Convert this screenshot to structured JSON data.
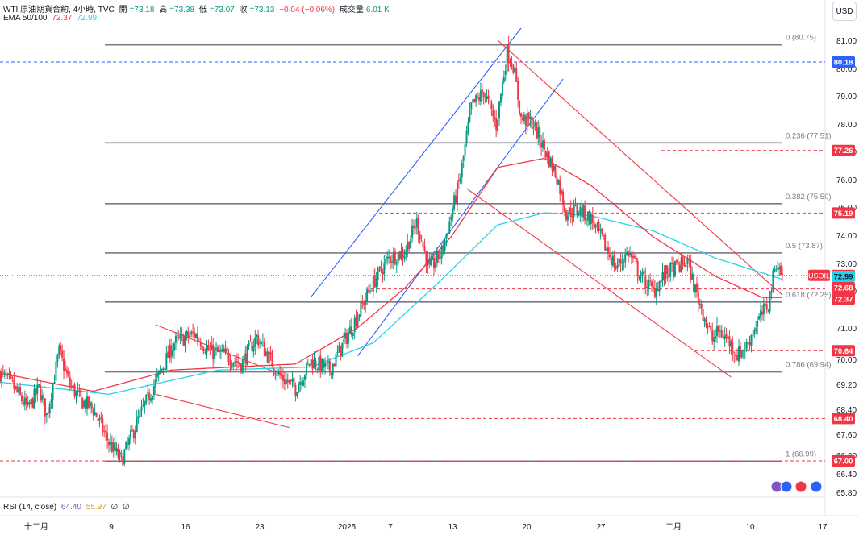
{
  "header": {
    "symbol_line": "WTI 原油期貨合約, 4小時, TVC",
    "open_label": "開",
    "open": "=73.18",
    "high_label": "高",
    "high": "=73.38",
    "low_label": "低",
    "low": "=73.07",
    "close_label": "收",
    "close": "=73.13",
    "change": "−0.04 (−0.06%)",
    "volume_label": "成交量",
    "volume": "6.01 K",
    "ema_label": "EMA 50/100",
    "ema50": "72.37",
    "ema100": "72.99",
    "currency_button": "USD"
  },
  "colors": {
    "up": "#089981",
    "down": "#f23645",
    "ema50": "#f23645",
    "ema100": "#22d3ee",
    "trend_blue": "#2962ff",
    "trend_red": "#f23645",
    "fib": "#787b86",
    "last": "#f23645"
  },
  "rsi": {
    "label": "RSI (14, close)",
    "value1": "64.40",
    "value2": "55.97",
    "zero1": "∅",
    "zero2": "∅"
  },
  "chart_data": {
    "type": "candlestick",
    "title": "WTI 原油期貨合約, 4小時, TVC",
    "y_ticks": [
      "81.00",
      "80.00",
      "79.00",
      "78.00",
      "77.00",
      "76.00",
      "75.00",
      "74.00",
      "73.00",
      "72.00",
      "71.00",
      "70.00",
      "69.20",
      "68.40",
      "67.60",
      "66.80",
      "66.40",
      "65.80"
    ],
    "ylim": [
      65.8,
      81.3
    ],
    "x_ticks": [
      "十二月",
      "9",
      "16",
      "23",
      "2025",
      "7",
      "13",
      "20",
      "27",
      "二月",
      "10",
      "17"
    ],
    "fibonacci": [
      {
        "label": "0 (80.75)",
        "value": 80.75
      },
      {
        "label": "0.236 (77.51)",
        "value": 77.51
      },
      {
        "label": "0.382 (75.50)",
        "value": 75.5
      },
      {
        "label": "0.5 (73.87)",
        "value": 73.87
      },
      {
        "label": "0.618 (72.25)",
        "value": 72.25
      },
      {
        "label": "0.786 (69.94)",
        "value": 69.94
      },
      {
        "label": "1 (66.99)",
        "value": 66.99
      }
    ],
    "price_labels": [
      {
        "text": "80.18",
        "value": 80.18,
        "style": "blue"
      },
      {
        "text": "77.26",
        "value": 77.26,
        "style": "red"
      },
      {
        "text": "75.19",
        "value": 75.19,
        "style": "red"
      },
      {
        "text": "USOIL",
        "value": 73.13,
        "style": "symbol"
      },
      {
        "text": "73.13",
        "value": 73.13,
        "style": "red"
      },
      {
        "text": "72.99",
        "value": 72.99,
        "style": "cyan"
      },
      {
        "text": "72.68",
        "value": 72.68,
        "style": "red"
      },
      {
        "text": "72.37",
        "value": 72.37,
        "style": "red"
      },
      {
        "text": "70.64",
        "value": 70.64,
        "style": "red"
      },
      {
        "text": "68.40",
        "value": 68.4,
        "style": "red"
      },
      {
        "text": "67.00",
        "value": 67.0,
        "style": "red"
      }
    ],
    "anchors": [
      [
        0,
        69.9
      ],
      [
        8,
        69.5
      ],
      [
        18,
        68.7
      ],
      [
        25,
        69.4
      ],
      [
        30,
        68.5
      ],
      [
        38,
        70.6
      ],
      [
        45,
        69.5
      ],
      [
        52,
        69.0
      ],
      [
        60,
        68.7
      ],
      [
        70,
        67.6
      ],
      [
        78,
        67.0
      ],
      [
        90,
        68.5
      ],
      [
        100,
        69.6
      ],
      [
        112,
        70.9
      ],
      [
        125,
        71.2
      ],
      [
        135,
        70.6
      ],
      [
        145,
        70.5
      ],
      [
        155,
        70.2
      ],
      [
        165,
        71.1
      ],
      [
        180,
        69.8
      ],
      [
        190,
        69.4
      ],
      [
        200,
        70.3
      ],
      [
        212,
        70.0
      ],
      [
        225,
        71.3
      ],
      [
        240,
        72.9
      ],
      [
        250,
        73.7
      ],
      [
        260,
        73.9
      ],
      [
        268,
        74.9
      ],
      [
        276,
        73.3
      ],
      [
        284,
        73.9
      ],
      [
        291,
        75.3
      ],
      [
        296,
        76.4
      ],
      [
        303,
        78.7
      ],
      [
        311,
        79.2
      ],
      [
        319,
        78.1
      ],
      [
        326,
        80.5
      ],
      [
        330,
        80.1
      ],
      [
        335,
        78.3
      ],
      [
        342,
        78.2
      ],
      [
        350,
        77.3
      ],
      [
        358,
        76.4
      ],
      [
        364,
        75.2
      ],
      [
        372,
        75.3
      ],
      [
        380,
        75.0
      ],
      [
        388,
        74.2
      ],
      [
        396,
        73.4
      ],
      [
        404,
        73.9
      ],
      [
        412,
        73.1
      ],
      [
        420,
        72.6
      ],
      [
        428,
        73.2
      ],
      [
        436,
        73.4
      ],
      [
        442,
        73.6
      ],
      [
        446,
        72.8
      ],
      [
        452,
        71.9
      ],
      [
        458,
        71.0
      ],
      [
        462,
        71.3
      ],
      [
        468,
        71.0
      ],
      [
        474,
        70.5
      ],
      [
        480,
        70.8
      ],
      [
        486,
        71.5
      ],
      [
        494,
        72.2
      ],
      [
        499,
        73.6
      ],
      [
        503,
        73.1
      ]
    ],
    "ema50": [
      [
        0,
        69.9
      ],
      [
        60,
        69.3
      ],
      [
        110,
        70.0
      ],
      [
        190,
        70.2
      ],
      [
        230,
        71.4
      ],
      [
        260,
        72.7
      ],
      [
        290,
        74.4
      ],
      [
        320,
        76.7
      ],
      [
        350,
        77.0
      ],
      [
        380,
        76.1
      ],
      [
        420,
        74.4
      ],
      [
        460,
        73.1
      ],
      [
        490,
        72.4
      ],
      [
        503,
        72.4
      ]
    ],
    "ema100": [
      [
        0,
        69.6
      ],
      [
        70,
        69.2
      ],
      [
        140,
        70.0
      ],
      [
        200,
        70.1
      ],
      [
        240,
        70.9
      ],
      [
        280,
        72.8
      ],
      [
        320,
        74.8
      ],
      [
        350,
        75.2
      ],
      [
        380,
        75.1
      ],
      [
        420,
        74.6
      ],
      [
        460,
        73.7
      ],
      [
        503,
        73.0
      ]
    ],
    "trendlines": [
      {
        "color": "blue",
        "from": [
          200,
          72.42
        ],
        "to": [
          335,
          81.3
        ]
      },
      {
        "color": "blue",
        "from": [
          230,
          70.47
        ],
        "to": [
          362,
          79.62
        ]
      },
      {
        "color": "red",
        "from": [
          320,
          80.9
        ],
        "to": [
          503,
          72.48
        ]
      },
      {
        "color": "red",
        "from": [
          300,
          76.0
        ],
        "to": [
          470,
          69.77
        ]
      },
      {
        "color": "red",
        "from": [
          100,
          71.5
        ],
        "to": [
          175,
          69.97
        ]
      },
      {
        "color": "red",
        "from": [
          100,
          69.2
        ],
        "to": [
          186,
          68.1
        ]
      }
    ]
  }
}
